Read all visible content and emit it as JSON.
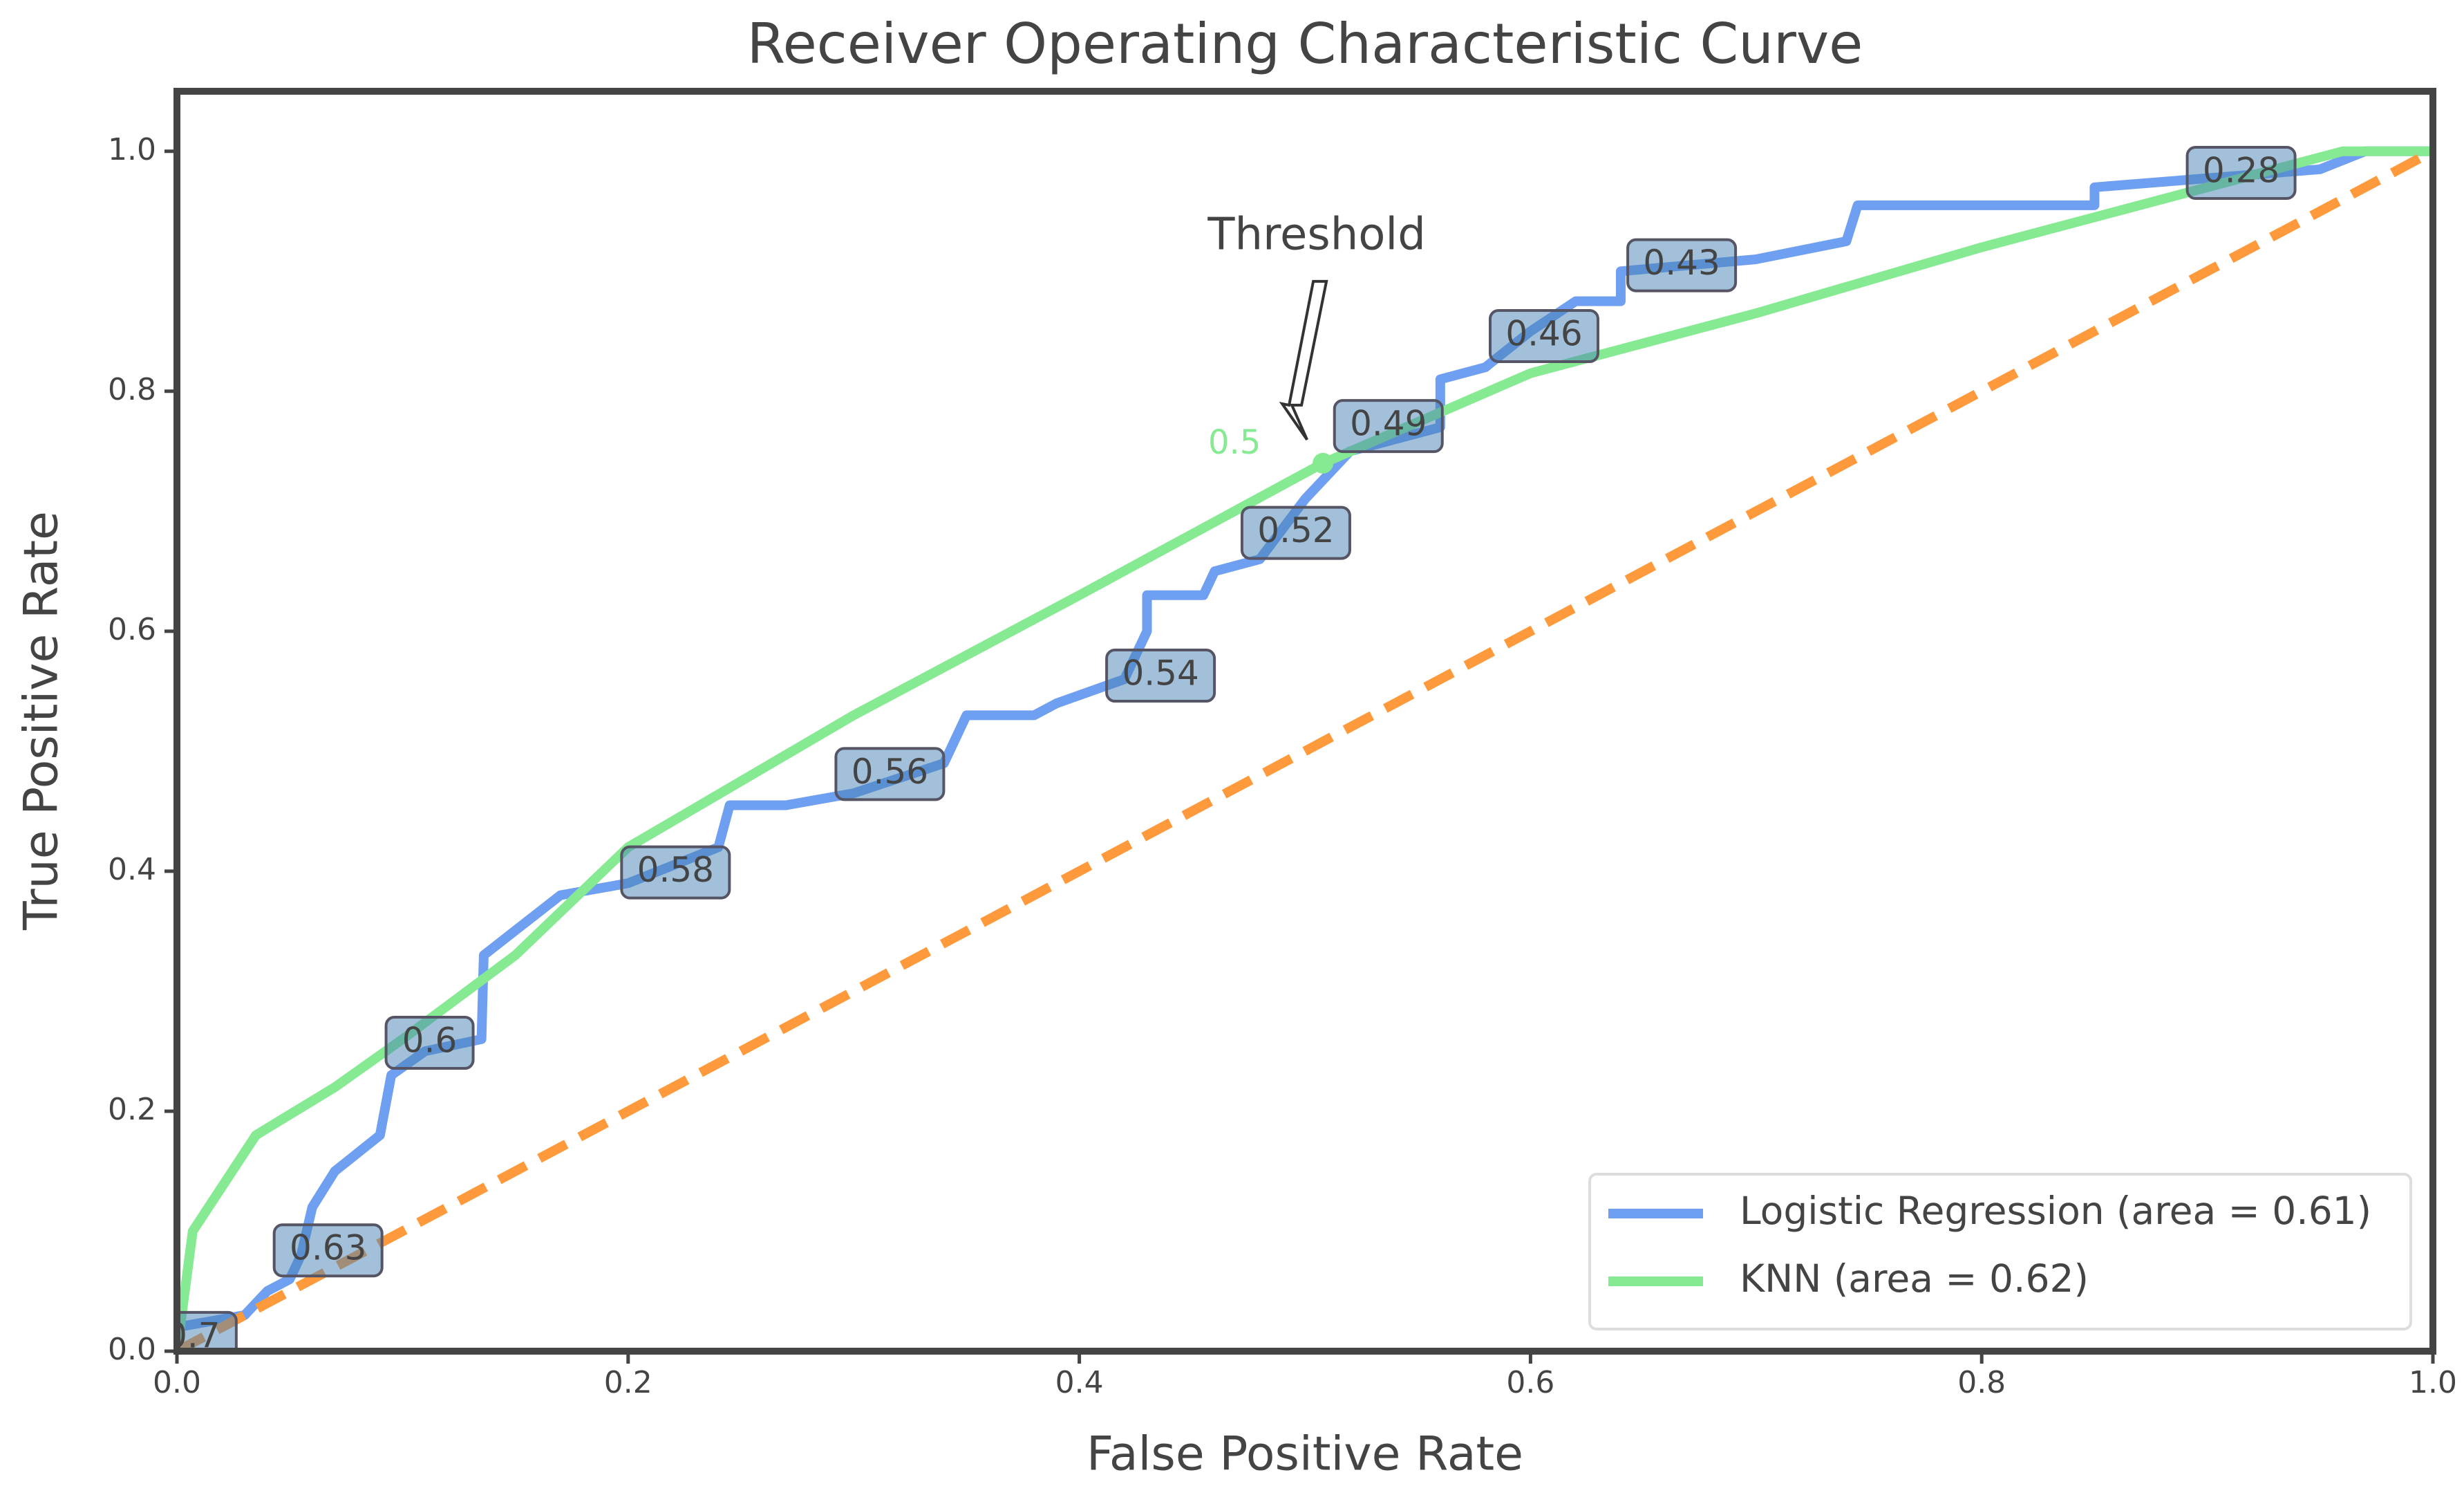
{
  "chart_data": {
    "type": "line",
    "title": "Receiver Operating Characteristic Curve",
    "xlabel": "False Positive Rate",
    "ylabel": "True Positive Rate",
    "xlim": [
      0,
      1
    ],
    "ylim": [
      0,
      1.05
    ],
    "xticks": [
      {
        "value": 0,
        "label": "0.0"
      },
      0.2,
      0.4,
      0.6,
      0.8,
      {
        "value": 1,
        "label": "1.0"
      }
    ],
    "yticks": [
      {
        "value": 0,
        "label": "0.0"
      },
      0.2,
      0.4,
      0.6,
      0.8,
      {
        "value": 1,
        "label": "1.0"
      }
    ],
    "legend": "lower right",
    "series": [
      {
        "name": "Logistic Regression (area = 0.61)",
        "color": "#6f9ff0",
        "x": [
          0,
          0,
          0.03,
          0.04,
          0.05,
          0.055,
          0.06,
          0.07,
          0.09,
          0.095,
          0.11,
          0.135,
          0.136,
          0.17,
          0.2,
          0.24,
          0.245,
          0.27,
          0.3,
          0.34,
          0.35,
          0.38,
          0.39,
          0.42,
          0.43,
          0.43,
          0.455,
          0.46,
          0.48,
          0.5,
          0.52,
          0.56,
          0.56,
          0.58,
          0.6,
          0.62,
          0.64,
          0.64,
          0.7,
          0.74,
          0.745,
          0.85,
          0.85,
          0.95,
          0.97,
          1
        ],
        "values": [
          0,
          0.02,
          0.03,
          0.05,
          0.06,
          0.08,
          0.12,
          0.15,
          0.18,
          0.23,
          0.25,
          0.26,
          0.33,
          0.38,
          0.39,
          0.42,
          0.455,
          0.455,
          0.465,
          0.49,
          0.53,
          0.53,
          0.54,
          0.56,
          0.6,
          0.63,
          0.63,
          0.65,
          0.66,
          0.71,
          0.75,
          0.77,
          0.81,
          0.82,
          0.85,
          0.875,
          0.875,
          0.9,
          0.91,
          0.925,
          0.955,
          0.955,
          0.97,
          0.985,
          1,
          1
        ]
      },
      {
        "name": "KNN (area = 0.62)",
        "color": "#86ea92",
        "x": [
          0,
          0.007,
          0.035,
          0.07,
          0.1,
          0.15,
          0.2,
          0.3,
          0.4,
          0.508,
          0.6,
          0.7,
          0.8,
          0.9,
          0.96,
          1
        ],
        "values": [
          0,
          0.1,
          0.18,
          0.22,
          0.26,
          0.33,
          0.42,
          0.53,
          0.63,
          0.74,
          0.815,
          0.865,
          0.92,
          0.97,
          1,
          1
        ]
      }
    ],
    "diagonal": {
      "x": [
        0,
        1
      ],
      "values": [
        0,
        1
      ],
      "color": "#ff9a3c",
      "dashed": true
    },
    "threshold_labels": [
      {
        "x": 0.007,
        "y": 0.011,
        "threshold": 0.7
      },
      {
        "x": 0.067,
        "y": 0.084,
        "threshold": 0.63
      },
      {
        "x": 0.112,
        "y": 0.257,
        "threshold": 0.6
      },
      {
        "x": 0.221,
        "y": 0.399,
        "threshold": 0.58
      },
      {
        "x": 0.316,
        "y": 0.481,
        "threshold": 0.56
      },
      {
        "x": 0.436,
        "y": 0.563,
        "threshold": 0.54
      },
      {
        "x": 0.496,
        "y": 0.682,
        "threshold": 0.52
      },
      {
        "x": 0.537,
        "y": 0.771,
        "threshold": 0.49
      },
      {
        "x": 0.606,
        "y": 0.846,
        "threshold": 0.46
      },
      {
        "x": 0.667,
        "y": 0.905,
        "threshold": 0.43
      },
      {
        "x": 0.915,
        "y": 0.982,
        "threshold": 0.28
      }
    ],
    "threshold_point": {
      "x": 0.508,
      "y": 0.74,
      "threshold": 0.5,
      "annotation": "Threshold"
    }
  }
}
